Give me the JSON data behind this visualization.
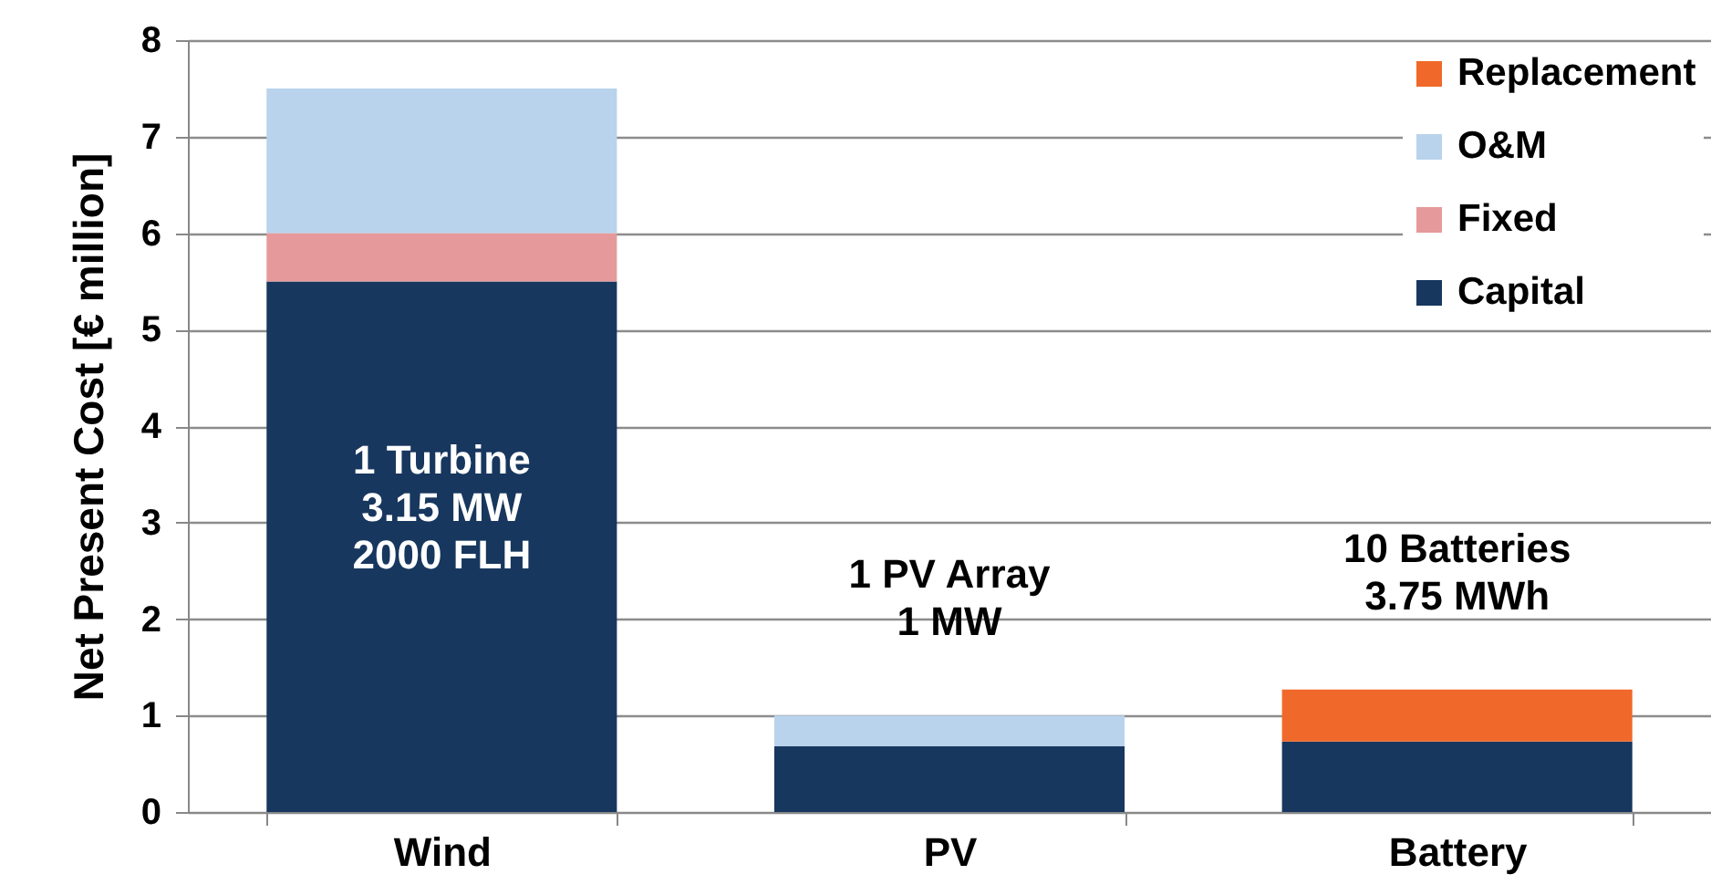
{
  "chart_data": {
    "type": "bar",
    "stacked": true,
    "ylabel": "Net Present Cost [€ million]",
    "categories": [
      "Wind",
      "PV",
      "Battery"
    ],
    "series": [
      {
        "name": "Capital",
        "color": "#17375e",
        "values": [
          5.5,
          0.68,
          0.73
        ]
      },
      {
        "name": "Fixed",
        "color": "#e6999b",
        "values": [
          0.5,
          null,
          null
        ]
      },
      {
        "name": "O&M",
        "color": "#b9d3ec",
        "values": [
          1.5,
          0.32,
          null
        ]
      },
      {
        "name": "Replacement",
        "color": "#f0692a",
        "values": [
          null,
          null,
          0.54
        ]
      }
    ],
    "ylim": [
      0,
      8
    ],
    "yticks": [
      0,
      1,
      2,
      3,
      4,
      5,
      6,
      7,
      8
    ],
    "grid": "y",
    "legend": "top right",
    "annotations": [
      "1 Turbine\n3.15 MW\n2000 FLH",
      "1 PV Array\n1 MW",
      "10 Batteries\n3.75 MWh"
    ]
  }
}
